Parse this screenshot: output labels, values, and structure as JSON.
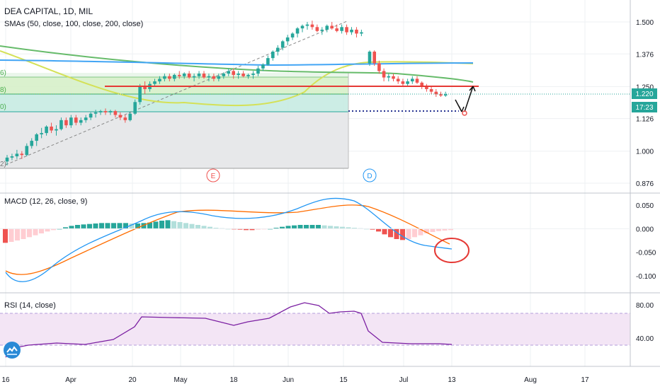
{
  "chart_data": {
    "type": "candlestick",
    "symbol": "DEA CAPITAL",
    "interval": "1D",
    "exchange": "MIL",
    "indicator_label": "SMAs (50, close, 100, close, 200, close)",
    "price_axis": {
      "ticks": [
        0.876,
        1.0,
        1.126,
        1.25,
        1.376,
        1.5
      ],
      "labels": [
        "0.876",
        "1.000",
        "1.126",
        "1.250",
        "1.376",
        "1.500"
      ],
      "range": [
        0.856,
        1.58
      ]
    },
    "current_price": "1.220",
    "countdown": "17:23",
    "time_axis": {
      "labels": [
        "16",
        "Apr",
        "20",
        "May",
        "18",
        "Jun",
        "15",
        "Jul",
        "13",
        "Aug",
        "17"
      ]
    },
    "candles": [
      [
        0.96,
        0.985,
        0.945,
        0.975
      ],
      [
        0.975,
        0.99,
        0.965,
        0.98
      ],
      [
        0.98,
        1.005,
        0.97,
        0.99
      ],
      [
        0.99,
        1.0,
        0.97,
        0.985
      ],
      [
        0.985,
        1.03,
        0.98,
        1.02
      ],
      [
        1.02,
        1.05,
        1.01,
        1.04
      ],
      [
        1.04,
        1.07,
        1.02,
        1.065
      ],
      [
        1.065,
        1.09,
        1.05,
        1.07
      ],
      [
        1.07,
        1.1,
        1.06,
        1.095
      ],
      [
        1.095,
        1.11,
        1.07,
        1.08
      ],
      [
        1.08,
        1.1,
        1.06,
        1.085
      ],
      [
        1.085,
        1.13,
        1.08,
        1.12
      ],
      [
        1.12,
        1.13,
        1.09,
        1.1
      ],
      [
        1.1,
        1.14,
        1.09,
        1.13
      ],
      [
        1.13,
        1.14,
        1.1,
        1.11
      ],
      [
        1.11,
        1.13,
        1.1,
        1.12
      ],
      [
        1.12,
        1.14,
        1.11,
        1.13
      ],
      [
        1.13,
        1.15,
        1.12,
        1.145
      ],
      [
        1.145,
        1.16,
        1.13,
        1.15
      ],
      [
        1.15,
        1.16,
        1.14,
        1.155
      ],
      [
        1.155,
        1.165,
        1.14,
        1.15
      ],
      [
        1.15,
        1.16,
        1.14,
        1.155
      ],
      [
        1.155,
        1.16,
        1.13,
        1.14
      ],
      [
        1.14,
        1.15,
        1.12,
        1.13
      ],
      [
        1.13,
        1.14,
        1.11,
        1.12
      ],
      [
        1.12,
        1.15,
        1.115,
        1.145
      ],
      [
        1.145,
        1.2,
        1.14,
        1.19
      ],
      [
        1.19,
        1.26,
        1.18,
        1.25
      ],
      [
        1.25,
        1.27,
        1.22,
        1.24
      ],
      [
        1.24,
        1.27,
        1.23,
        1.26
      ],
      [
        1.26,
        1.28,
        1.25,
        1.27
      ],
      [
        1.27,
        1.29,
        1.26,
        1.28
      ],
      [
        1.28,
        1.3,
        1.27,
        1.29
      ],
      [
        1.29,
        1.3,
        1.27,
        1.28
      ],
      [
        1.28,
        1.3,
        1.27,
        1.295
      ],
      [
        1.295,
        1.31,
        1.28,
        1.29
      ],
      [
        1.29,
        1.305,
        1.28,
        1.3
      ],
      [
        1.3,
        1.31,
        1.28,
        1.285
      ],
      [
        1.285,
        1.3,
        1.27,
        1.29
      ],
      [
        1.29,
        1.31,
        1.28,
        1.3
      ],
      [
        1.3,
        1.31,
        1.28,
        1.285
      ],
      [
        1.285,
        1.3,
        1.27,
        1.29
      ],
      [
        1.29,
        1.3,
        1.27,
        1.28
      ],
      [
        1.28,
        1.3,
        1.27,
        1.29
      ],
      [
        1.29,
        1.305,
        1.28,
        1.3
      ],
      [
        1.3,
        1.32,
        1.29,
        1.31
      ],
      [
        1.31,
        1.32,
        1.28,
        1.295
      ],
      [
        1.295,
        1.31,
        1.28,
        1.3
      ],
      [
        1.3,
        1.31,
        1.285,
        1.29
      ],
      [
        1.29,
        1.3,
        1.28,
        1.295
      ],
      [
        1.295,
        1.31,
        1.28,
        1.3
      ],
      [
        1.3,
        1.33,
        1.29,
        1.32
      ],
      [
        1.32,
        1.34,
        1.31,
        1.335
      ],
      [
        1.335,
        1.37,
        1.33,
        1.36
      ],
      [
        1.36,
        1.39,
        1.35,
        1.385
      ],
      [
        1.385,
        1.41,
        1.37,
        1.4
      ],
      [
        1.4,
        1.43,
        1.39,
        1.425
      ],
      [
        1.425,
        1.45,
        1.41,
        1.44
      ],
      [
        1.44,
        1.46,
        1.43,
        1.455
      ],
      [
        1.455,
        1.48,
        1.44,
        1.475
      ],
      [
        1.475,
        1.49,
        1.46,
        1.485
      ],
      [
        1.485,
        1.5,
        1.47,
        1.49
      ],
      [
        1.49,
        1.505,
        1.47,
        1.48
      ],
      [
        1.48,
        1.49,
        1.46,
        1.465
      ],
      [
        1.465,
        1.48,
        1.45,
        1.47
      ],
      [
        1.47,
        1.49,
        1.46,
        1.485
      ],
      [
        1.485,
        1.5,
        1.47,
        1.475
      ],
      [
        1.475,
        1.49,
        1.46,
        1.465
      ],
      [
        1.465,
        1.49,
        1.455,
        1.48
      ],
      [
        1.48,
        1.49,
        1.45,
        1.46
      ],
      [
        1.46,
        1.48,
        1.45,
        1.47
      ],
      [
        1.47,
        1.48,
        1.44,
        1.455
      ],
      [
        1.455,
        1.47,
        1.445,
        1.46
      ],
      [
        1.34,
        1.39,
        1.33,
        1.385
      ],
      [
        1.385,
        1.39,
        1.33,
        1.34
      ],
      [
        1.34,
        1.35,
        1.3,
        1.31
      ],
      [
        1.31,
        1.32,
        1.27,
        1.285
      ],
      [
        1.285,
        1.3,
        1.27,
        1.29
      ],
      [
        1.29,
        1.3,
        1.27,
        1.28
      ],
      [
        1.28,
        1.29,
        1.26,
        1.27
      ],
      [
        1.27,
        1.28,
        1.25,
        1.26
      ],
      [
        1.26,
        1.28,
        1.25,
        1.27
      ],
      [
        1.27,
        1.29,
        1.26,
        1.28
      ],
      [
        1.28,
        1.29,
        1.26,
        1.265
      ],
      [
        1.265,
        1.27,
        1.24,
        1.25
      ],
      [
        1.25,
        1.26,
        1.23,
        1.24
      ],
      [
        1.24,
        1.25,
        1.22,
        1.23
      ],
      [
        1.23,
        1.24,
        1.21,
        1.22
      ],
      [
        1.22,
        1.23,
        1.21,
        1.215
      ],
      [
        1.215,
        1.23,
        1.21,
        1.22
      ]
    ],
    "fibonacci_labels": [
      "6)",
      "8)",
      "0)",
      "2)"
    ],
    "event_markers": [
      "E",
      "D"
    ],
    "macd": {
      "label": "MACD (12, 26, close, 9)",
      "ticks": [
        0.05,
        0.0,
        -0.05,
        -0.1
      ],
      "labels": [
        "0.050",
        "0.000",
        "-0.050",
        "-0.100"
      ],
      "range": [
        -0.13,
        0.08
      ]
    },
    "rsi": {
      "label": "RSI (14, close)",
      "ticks": [
        80,
        40
      ],
      "labels": [
        "80.00",
        "40.00"
      ],
      "range": [
        10,
        95
      ],
      "band": [
        30,
        70
      ]
    },
    "colors": {
      "up": "#26a69a",
      "down": "#ef5350",
      "macd_line": "#2196f3",
      "signal_line": "#ff6d00",
      "rsi_line": "#7b1fa2",
      "sma50": "#d4e157",
      "sma100": "#66bb6a",
      "sma200": "#42a5f5",
      "resistance": "#e53935",
      "support": "#283593"
    }
  }
}
